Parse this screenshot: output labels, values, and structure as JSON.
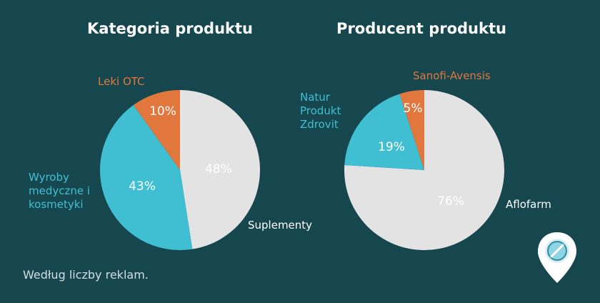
{
  "colors": {
    "background": "#16474f",
    "light_gray": "#e3e3e3",
    "cyan": "#40bfd3",
    "orange": "#e1773d",
    "label_dark": "#ffffff"
  },
  "footnote": "Według liczby reklam.",
  "badge_icon": "pill-pin-icon",
  "chart_data": [
    {
      "type": "pie",
      "title": "Kategoria produktu",
      "slices": [
        {
          "label": "Suplementy",
          "value": 48,
          "display": "48%",
          "color": "#e3e3e3"
        },
        {
          "label": "Wyroby medyczne i kosmetyki",
          "value": 43,
          "display": "43%",
          "color": "#40bfd3"
        },
        {
          "label": "Leki OTC",
          "value": 10,
          "display": "10%",
          "color": "#e1773d"
        }
      ]
    },
    {
      "type": "pie",
      "title": "Producent produktu",
      "slices": [
        {
          "label": "Aflofarm",
          "value": 76,
          "display": "76%",
          "color": "#e3e3e3"
        },
        {
          "label": "Natur Produkt Zdrovit",
          "value": 19,
          "display": "19%",
          "color": "#40bfd3"
        },
        {
          "label": "Sanofi-Avensis",
          "value": 5,
          "display": "5%",
          "color": "#e1773d"
        }
      ]
    }
  ]
}
